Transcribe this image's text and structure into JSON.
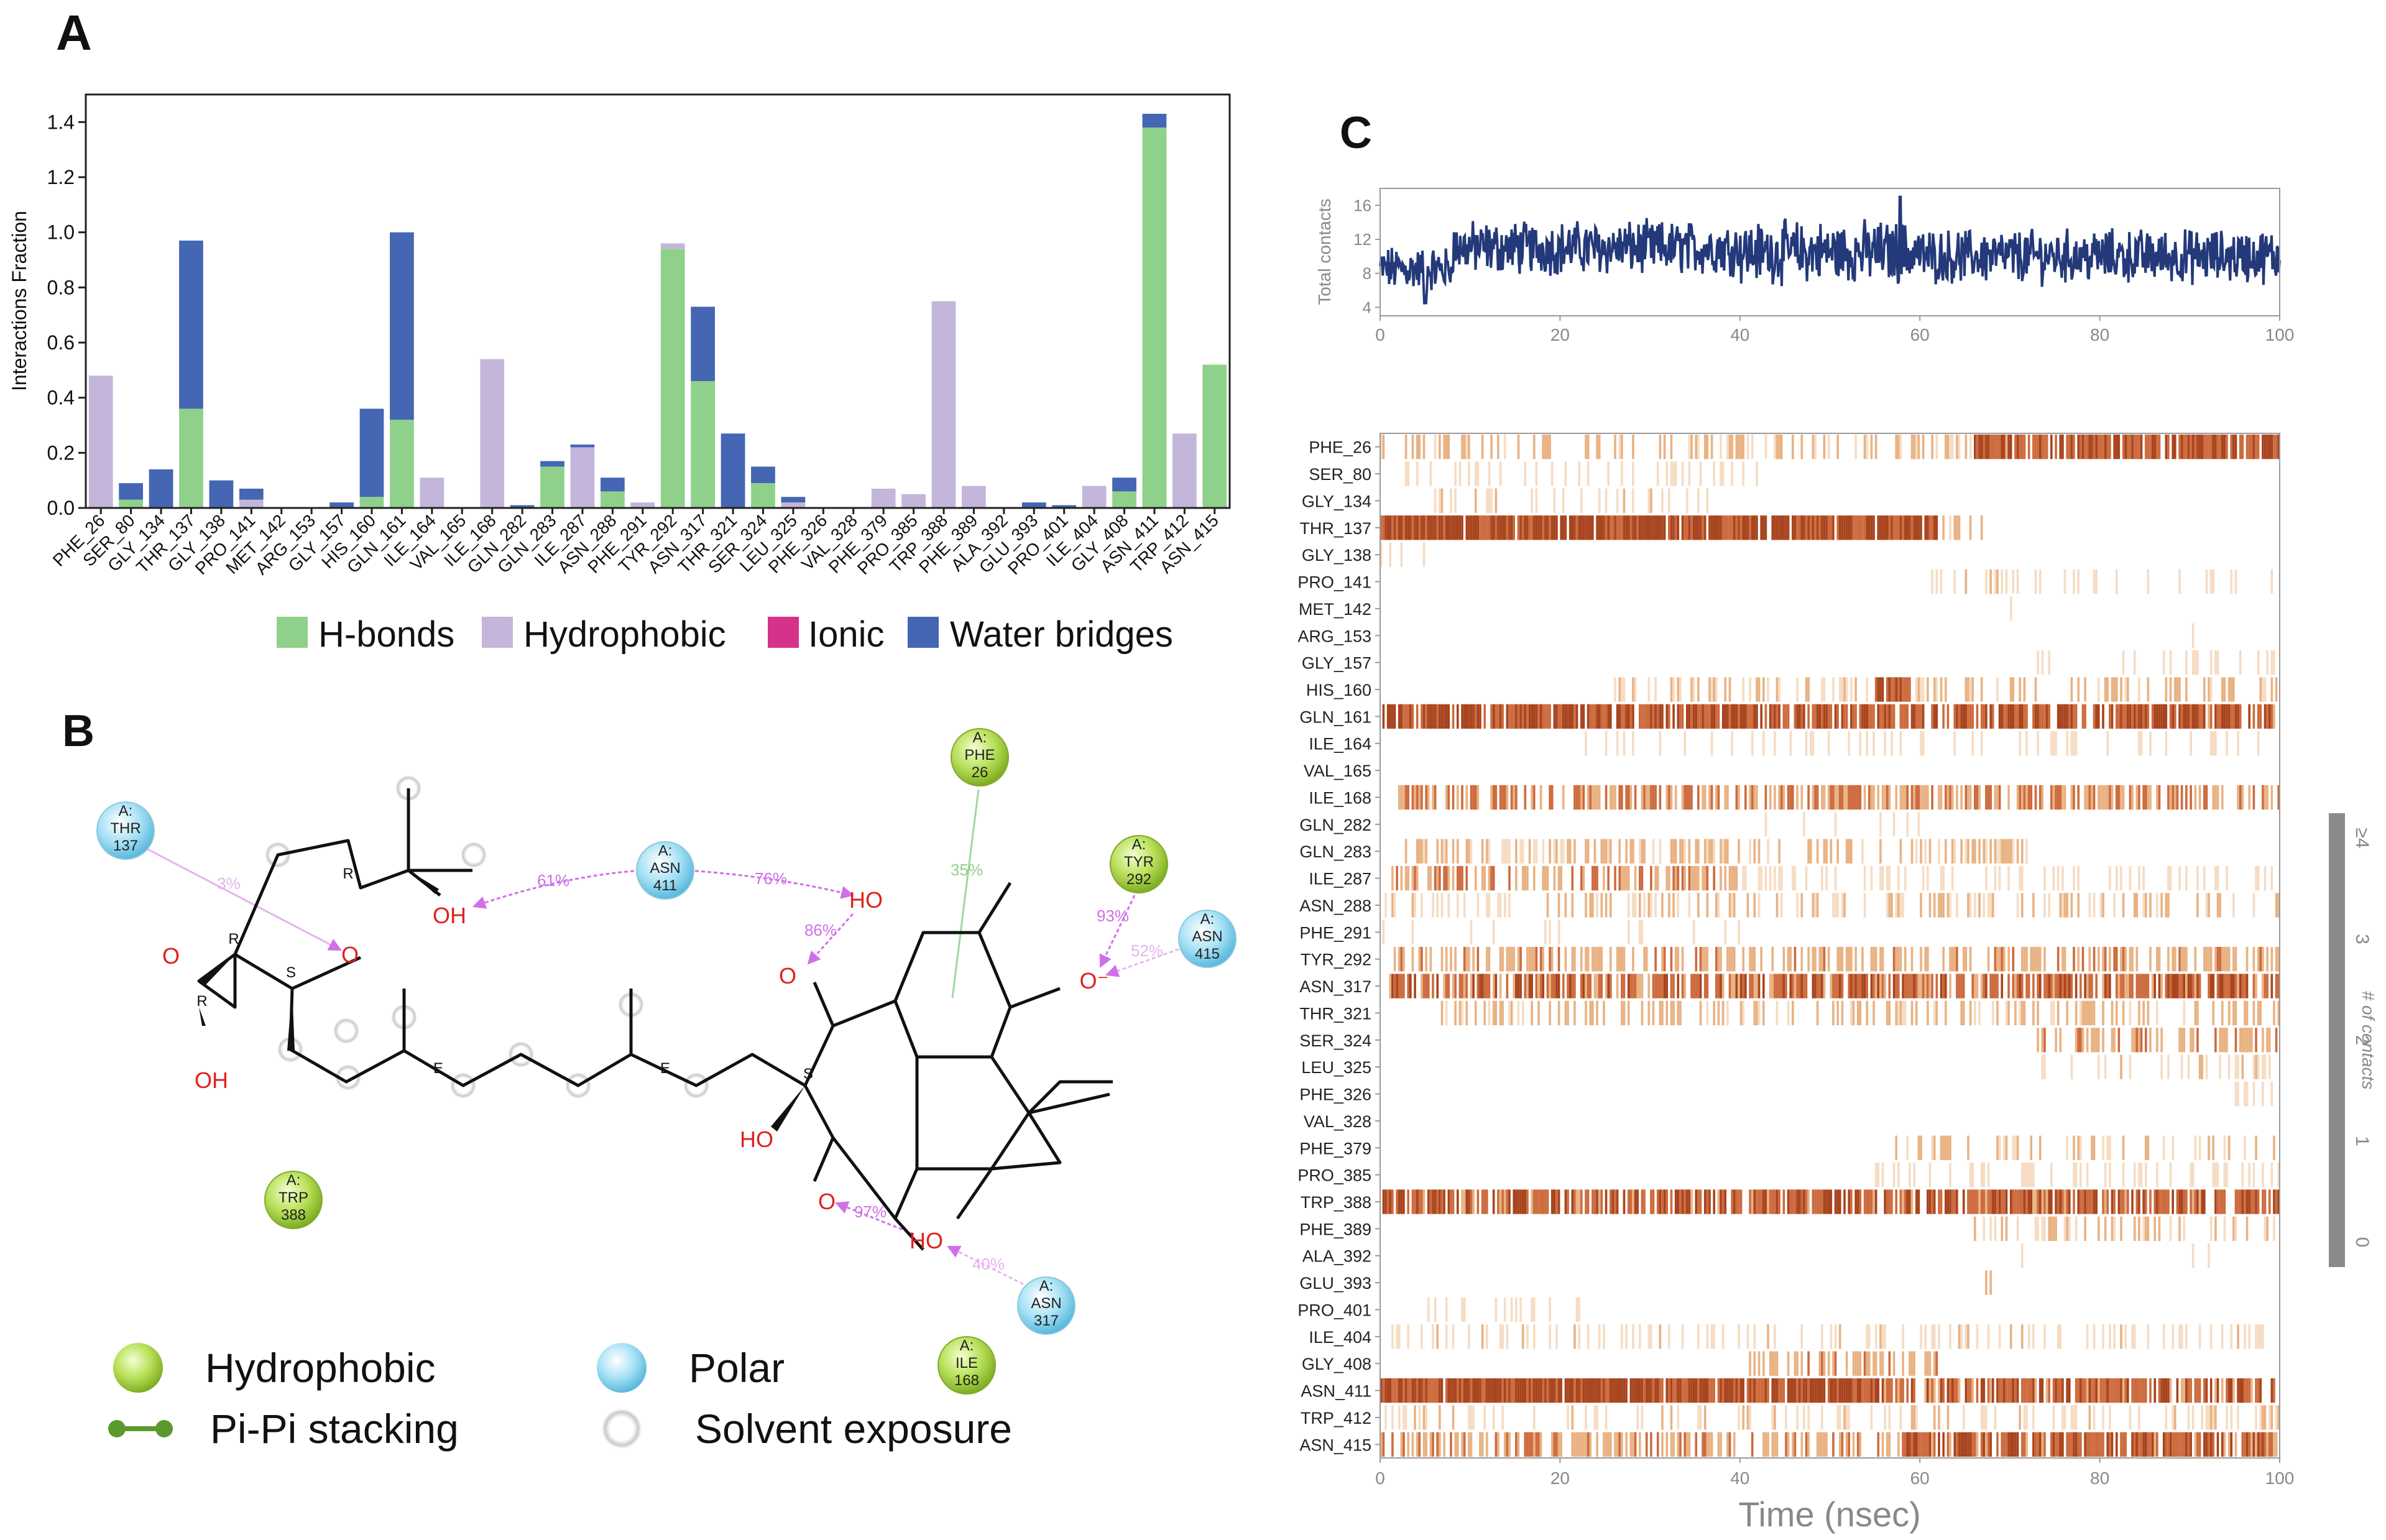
{
  "panel_labels": {
    "a": "A",
    "b": "B",
    "c": "C"
  },
  "colors": {
    "hbond": "#8fd18a",
    "hydrophobic": "#c4b6da",
    "ionic": "#d6328c",
    "water": "#4466b3",
    "axis": "#222222",
    "contacts_line": "#23397a",
    "heat_low": "#f6dcc2",
    "heat_mid": "#e9b283",
    "heat_high": "#cd6b3e",
    "heat_top": "#a8441e",
    "hydrophobic_node": "#a8d442",
    "polar_node": "#8fd6ee",
    "hbond_arrow": "#d070e8",
    "pipi": "#5a9a2c",
    "atom_red": "#e02020"
  },
  "chart_data": [
    {
      "type": "bar",
      "panel": "A",
      "stacked": true,
      "title": "",
      "ylabel": "Interactions Fraction",
      "xlabel": "",
      "ylim": [
        0,
        1.5
      ],
      "yticks": [
        0.0,
        0.2,
        0.4,
        0.6,
        0.8,
        1.0,
        1.2,
        1.4
      ],
      "ytick_labels": [
        "0.0",
        "0.2",
        "0.4",
        "0.6",
        "0.8",
        "1.0",
        "1.2",
        "1.4"
      ],
      "categories": [
        "PHE_26",
        "SER_80",
        "GLY_134",
        "THR_137",
        "GLY_138",
        "PRO_141",
        "MET_142",
        "ARG_153",
        "GLY_157",
        "HIS_160",
        "GLN_161",
        "ILE_164",
        "VAL_165",
        "ILE_168",
        "GLN_282",
        "GLN_283",
        "ILE_287",
        "ASN_288",
        "PHE_291",
        "TYR_292",
        "ASN_317",
        "THR_321",
        "SER_324",
        "LEU_325",
        "PHE_326",
        "VAL_328",
        "PHE_379",
        "PRO_385",
        "TRP_388",
        "PHE_389",
        "ALA_392",
        "GLU_393",
        "PRO_401",
        "ILE_404",
        "GLY_408",
        "ASN_411",
        "TRP_412",
        "ASN_415"
      ],
      "series": [
        {
          "name": "H-bonds",
          "values": [
            0,
            0.03,
            0,
            0.36,
            0,
            0,
            0,
            0,
            0,
            0.04,
            0.32,
            0,
            0,
            0,
            0,
            0.15,
            0,
            0.06,
            0,
            0.94,
            0.46,
            0,
            0.09,
            0,
            0,
            0,
            0,
            0,
            0,
            0,
            0,
            0,
            0,
            0,
            0.06,
            1.38,
            0,
            0.52
          ]
        },
        {
          "name": "Hydrophobic",
          "values": [
            0.48,
            0,
            0,
            0,
            0,
            0.03,
            0,
            0,
            0,
            0,
            0,
            0.11,
            0,
            0.54,
            0,
            0,
            0.22,
            0,
            0.02,
            0.02,
            0,
            0,
            0,
            0.02,
            0,
            0,
            0.07,
            0.05,
            0.75,
            0.08,
            0,
            0,
            0,
            0.08,
            0,
            0,
            0.27,
            0
          ]
        },
        {
          "name": "Ionic",
          "values": [
            0,
            0,
            0,
            0,
            0,
            0,
            0,
            0,
            0,
            0,
            0,
            0,
            0,
            0,
            0,
            0,
            0,
            0,
            0,
            0,
            0,
            0,
            0,
            0,
            0,
            0,
            0,
            0,
            0,
            0,
            0,
            0,
            0,
            0,
            0,
            0,
            0,
            0
          ]
        },
        {
          "name": "Water bridges",
          "values": [
            0,
            0.06,
            0.14,
            0.61,
            0.1,
            0.04,
            0,
            0,
            0.02,
            0.32,
            0.68,
            0,
            0,
            0,
            0.01,
            0.02,
            0.01,
            0.05,
            0,
            0,
            0.27,
            0.27,
            0.06,
            0.02,
            0,
            0,
            0,
            0,
            0,
            0,
            0,
            0.02,
            0.01,
            0,
            0.05,
            0.05,
            0,
            0
          ]
        }
      ],
      "legend": [
        "H-bonds",
        "Hydrophobic",
        "Ionic",
        "Water bridges"
      ],
      "legend_position": "bottom"
    },
    {
      "type": "line",
      "panel": "C-top",
      "ylabel": "Total contacts",
      "xlabel": "",
      "xlim": [
        0,
        100
      ],
      "ylim": [
        3,
        18
      ],
      "xticks": [
        0,
        20,
        40,
        60,
        80,
        100
      ],
      "xtick_labels": [
        "0",
        "20",
        "40",
        "60",
        "80",
        "100"
      ],
      "yticks": [
        4,
        8,
        12,
        16
      ],
      "ytick_labels": [
        "4",
        "8",
        "12",
        "16"
      ],
      "series": [
        {
          "name": "Total contacts",
          "x_range": [
            0,
            100
          ],
          "n_points": 1000,
          "segments": [
            {
              "from": 0,
              "to": 8,
              "mean": 8.5,
              "amplitude": 2.2
            },
            {
              "from": 8,
              "to": 40,
              "mean": 11,
              "amplitude": 2.6
            },
            {
              "from": 40,
              "to": 60,
              "mean": 10.5,
              "amplitude": 3.0
            },
            {
              "from": 60,
              "to": 100,
              "mean": 10,
              "amplitude": 2.6
            }
          ],
          "peak": {
            "x": 57.8,
            "y": 17
          },
          "trough": {
            "x": 5,
            "y": 4.5
          }
        }
      ]
    },
    {
      "type": "heatmap",
      "panel": "C-bottom",
      "xlabel": "Time (nsec)",
      "xlim": [
        0,
        100
      ],
      "xticks": [
        0,
        20,
        40,
        60,
        80,
        100
      ],
      "xtick_labels": [
        "0",
        "20",
        "40",
        "60",
        "80",
        "100"
      ],
      "colorbar_label": "# of contacts",
      "colorbar_ticks": [
        "0",
        "1",
        "2",
        "3",
        "≥4"
      ],
      "rows": [
        {
          "label": "PHE_26",
          "spans": [
            [
              0,
              66,
              0.35
            ],
            [
              66,
              100,
              0.85
            ]
          ]
        },
        {
          "label": "SER_80",
          "spans": [
            [
              2,
              42,
              0.2
            ]
          ]
        },
        {
          "label": "GLY_134",
          "spans": [
            [
              6,
              37,
              0.25
            ]
          ]
        },
        {
          "label": "THR_137",
          "spans": [
            [
              0,
              62,
              0.95
            ],
            [
              62,
              67,
              0.4
            ]
          ]
        },
        {
          "label": "GLY_138",
          "spans": [
            [
              0,
              6,
              0.2
            ]
          ]
        },
        {
          "label": "PRO_141",
          "spans": [
            [
              61,
              72,
              0.3
            ],
            [
              72,
              100,
              0.12
            ]
          ]
        },
        {
          "label": "MET_142",
          "spans": [
            [
              70,
              75,
              0.1
            ]
          ]
        },
        {
          "label": "ARG_153",
          "spans": [
            [
              90,
              91,
              0.1
            ]
          ]
        },
        {
          "label": "GLY_157",
          "spans": [
            [
              73,
              100,
              0.15
            ]
          ]
        },
        {
          "label": "HIS_160",
          "spans": [
            [
              26,
              55,
              0.3
            ],
            [
              55,
              59,
              0.9
            ],
            [
              59,
              100,
              0.35
            ]
          ]
        },
        {
          "label": "GLN_161",
          "spans": [
            [
              0,
              100,
              0.85
            ]
          ]
        },
        {
          "label": "ILE_164",
          "spans": [
            [
              22,
              100,
              0.15
            ]
          ]
        },
        {
          "label": "VAL_165",
          "spans": [
            [
              66,
              67,
              0.08
            ]
          ]
        },
        {
          "label": "ILE_168",
          "spans": [
            [
              2,
              100,
              0.6
            ]
          ]
        },
        {
          "label": "GLN_282",
          "spans": [
            [
              35,
              60,
              0.12
            ]
          ]
        },
        {
          "label": "GLN_283",
          "spans": [
            [
              2,
              72,
              0.35
            ]
          ]
        },
        {
          "label": "ILE_287",
          "spans": [
            [
              1,
              40,
              0.55
            ],
            [
              40,
              100,
              0.2
            ]
          ]
        },
        {
          "label": "ASN_288",
          "spans": [
            [
              0,
              100,
              0.3
            ]
          ]
        },
        {
          "label": "PHE_291",
          "spans": [
            [
              0,
              40,
              0.12
            ]
          ]
        },
        {
          "label": "TYR_292",
          "spans": [
            [
              1,
              100,
              0.5
            ]
          ]
        },
        {
          "label": "ASN_317",
          "spans": [
            [
              1,
              100,
              0.75
            ]
          ]
        },
        {
          "label": "THR_321",
          "spans": [
            [
              6,
              100,
              0.35
            ]
          ]
        },
        {
          "label": "SER_324",
          "spans": [
            [
              73,
              100,
              0.5
            ]
          ]
        },
        {
          "label": "LEU_325",
          "spans": [
            [
              73,
              100,
              0.25
            ]
          ]
        },
        {
          "label": "PHE_326",
          "spans": [
            [
              95,
              100,
              0.12
            ]
          ]
        },
        {
          "label": "VAL_328",
          "spans": [
            [
              92,
              96,
              0.08
            ]
          ]
        },
        {
          "label": "PHE_379",
          "spans": [
            [
              57,
              100,
              0.3
            ]
          ]
        },
        {
          "label": "PRO_385",
          "spans": [
            [
              55,
              100,
              0.2
            ]
          ]
        },
        {
          "label": "TRP_388",
          "spans": [
            [
              0,
              100,
              0.8
            ]
          ]
        },
        {
          "label": "PHE_389",
          "spans": [
            [
              66,
              100,
              0.3
            ]
          ]
        },
        {
          "label": "ALA_392",
          "spans": [
            [
              70,
              95,
              0.06
            ]
          ]
        },
        {
          "label": "GLU_393",
          "spans": [
            [
              66,
              68,
              0.45
            ]
          ]
        },
        {
          "label": "PRO_401",
          "spans": [
            [
              3,
              25,
              0.15
            ]
          ]
        },
        {
          "label": "ILE_404",
          "spans": [
            [
              0,
              100,
              0.25
            ]
          ]
        },
        {
          "label": "GLY_408",
          "spans": [
            [
              41,
              62,
              0.5
            ]
          ]
        },
        {
          "label": "ASN_411",
          "spans": [
            [
              0,
              56,
              0.95
            ],
            [
              56,
              100,
              0.75
            ]
          ]
        },
        {
          "label": "TRP_412",
          "spans": [
            [
              0,
              100,
              0.25
            ]
          ]
        },
        {
          "label": "ASN_415",
          "spans": [
            [
              0,
              58,
              0.55
            ],
            [
              58,
              100,
              0.8
            ]
          ]
        }
      ]
    }
  ],
  "diagram": {
    "residues": {
      "thr137": {
        "chain": "A:",
        "name": "THR",
        "num": "137"
      },
      "asn411": {
        "chain": "A:",
        "name": "ASN",
        "num": "411"
      },
      "phe26": {
        "chain": "A:",
        "name": "PHE",
        "num": "26"
      },
      "tyr292": {
        "chain": "A:",
        "name": "TYR",
        "num": "292"
      },
      "asn415": {
        "chain": "A:",
        "name": "ASN",
        "num": "415"
      },
      "trp388": {
        "chain": "A:",
        "name": "TRP",
        "num": "388"
      },
      "asn317": {
        "chain": "A:",
        "name": "ASN",
        "num": "317"
      },
      "ile168": {
        "chain": "A:",
        "name": "ILE",
        "num": "168"
      }
    },
    "percentages": {
      "thr137": "3%",
      "asn411_oh_left": "61%",
      "asn411_oh_right": "76%",
      "oh_o_top": "86%",
      "phe26": "35%",
      "tyr292": "93%",
      "asn415": "52%",
      "oh_o_bottom": "97%",
      "asn317": "40%"
    },
    "atoms": {
      "oh_top": "OH",
      "ring_o": "O",
      "epox_o": "O",
      "oh_epox": "OH",
      "oh_right": "HO",
      "o_top": "O",
      "o_minus": "O⁻",
      "ho_mid": "HO",
      "o_bottom": "O",
      "ho_bottom": "HO"
    },
    "stereo": {
      "r1": "R",
      "r2": "R",
      "r3": "R",
      "s1": "S",
      "s2": "S",
      "e1": "E",
      "e2": "E"
    },
    "legend": {
      "hydrophobic": "Hydrophobic",
      "polar": "Polar",
      "pipi": "Pi-Pi stacking",
      "solvent": "Solvent exposure"
    }
  }
}
